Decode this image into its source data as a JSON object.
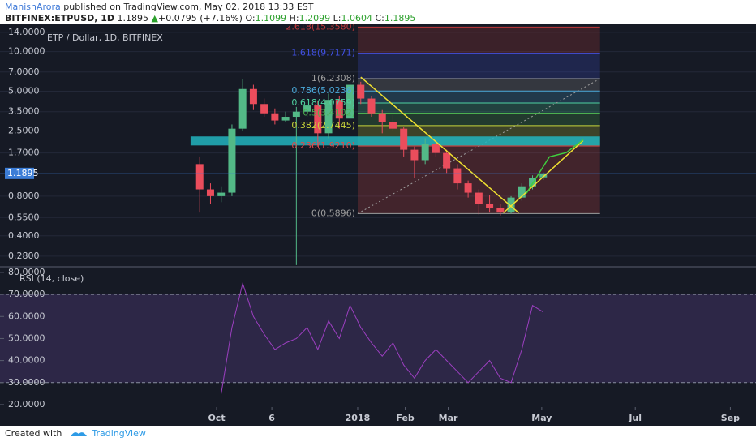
{
  "header": {
    "author": "ManishArora",
    "published": "published on TradingView.com, May 02, 2018 13:33 EST",
    "symbol": "BITFINEX:ETPUSD, 1D",
    "last": "1.1895",
    "arrow": "▲",
    "change": "+0.0795 (+7.16%)",
    "o_label": "O:",
    "o": "1.1099",
    "h_label": "H:",
    "h": "1.2099",
    "l_label": "L:",
    "l": "1.0604",
    "c_label": "C:",
    "c": "1.1895"
  },
  "footer": {
    "created": "Created with",
    "brand": "TradingView"
  },
  "chart_data": [
    {
      "type": "candlestick",
      "title": "ETP / Dollar, 1D, BITFINEX",
      "x": [
        0,
        7,
        14,
        21,
        28,
        35,
        42,
        49,
        56,
        63,
        70,
        77,
        84,
        91,
        98,
        105,
        112,
        119,
        126,
        133,
        140,
        147,
        154,
        161,
        168,
        175,
        182,
        189,
        196,
        203,
        210,
        217,
        224
      ],
      "open": [
        1.4,
        0.9,
        0.8,
        0.85,
        2.6,
        5.2,
        4.0,
        3.4,
        3.0,
        3.2,
        3.5,
        3.9,
        2.4,
        4.3,
        3.1,
        5.6,
        4.4,
        3.4,
        2.9,
        2.6,
        1.8,
        1.5,
        2.0,
        1.7,
        1.3,
        1.0,
        0.85,
        0.7,
        0.65,
        0.6,
        0.78,
        0.95,
        1.1099
      ],
      "high": [
        1.6,
        1.0,
        0.95,
        2.8,
        6.2,
        5.6,
        4.4,
        3.7,
        3.5,
        3.8,
        4.6,
        4.2,
        4.8,
        4.6,
        6.3,
        5.9,
        4.6,
        3.6,
        3.3,
        2.7,
        1.9,
        2.2,
        2.1,
        1.8,
        1.4,
        1.05,
        0.9,
        0.82,
        0.7,
        0.8,
        1.0,
        1.15,
        1.2099
      ],
      "low": [
        0.6,
        0.7,
        0.72,
        0.8,
        2.5,
        3.6,
        3.2,
        2.8,
        2.9,
        0.24,
        3.2,
        1.9,
        2.2,
        2.6,
        2.9,
        4.0,
        3.2,
        2.4,
        2.5,
        1.6,
        1.1,
        1.4,
        1.6,
        1.2,
        0.9,
        0.78,
        0.58,
        0.6,
        0.57,
        0.59,
        0.74,
        0.9,
        1.0604
      ],
      "close": [
        0.9,
        0.8,
        0.85,
        2.6,
        5.2,
        4.0,
        3.4,
        3.0,
        3.2,
        3.5,
        3.9,
        2.4,
        4.3,
        3.1,
        5.6,
        4.4,
        3.4,
        2.9,
        2.6,
        1.8,
        1.5,
        2.0,
        1.7,
        1.3,
        1.0,
        0.85,
        0.7,
        0.65,
        0.6,
        0.78,
        0.95,
        1.1,
        1.1895
      ],
      "up_color": "#53b987",
      "down_color": "#eb4d5c",
      "log_y": true,
      "ylim": [
        0.236,
        16.1
      ],
      "xlim": [
        -126,
        359
      ],
      "grid": true,
      "yticks": [
        {
          "value": 14,
          "label": "14.0000"
        },
        {
          "value": 10,
          "label": "10.0000"
        },
        {
          "value": 7,
          "label": "7.0000"
        },
        {
          "value": 5,
          "label": "5.0000"
        },
        {
          "value": 3.5,
          "label": "3.5000"
        },
        {
          "value": 2.5,
          "label": "2.5000"
        },
        {
          "value": 1.7,
          "label": "1.7000"
        },
        {
          "value": 0.8,
          "label": "0.8000"
        },
        {
          "value": 0.55,
          "label": "0.5500"
        },
        {
          "value": 0.4,
          "label": "0.4000"
        },
        {
          "value": 0.28,
          "label": "0.2800"
        }
      ],
      "last_price": 1.1895,
      "last_color": "#3c7dd6",
      "fib": {
        "xstart": 103,
        "xend": 261,
        "levels": [
          {
            "label": "2.618(15.3580)",
            "value": 15.358,
            "color": "#c0393b"
          },
          {
            "label": "1.618(9.7171)",
            "value": 9.7171,
            "color": "#4050e0"
          },
          {
            "label": "1(6.2308)",
            "value": 6.2308,
            "color": "#9e9e9e"
          },
          {
            "label": "0.786(5.0236)",
            "value": 5.0236,
            "color": "#4aa8d8"
          },
          {
            "label": "0.618(4.0759)",
            "value": 4.0759,
            "color": "#4fd1a0"
          },
          {
            "label": "0.5(3.4102)",
            "value": 3.4102,
            "color": "#4caf50"
          },
          {
            "label": "0.382(2.7445)",
            "value": 2.7445,
            "color": "#c8d43a"
          },
          {
            "label": "0.236(1.9210)",
            "value": 1.921,
            "color": "#e04a4a"
          },
          {
            "label": "0(0.5896)",
            "value": 0.5896,
            "color": "#9e9e9e"
          }
        ]
      },
      "band": {
        "x": [
          -6,
          261
        ],
        "y": [
          1.94,
          2.27
        ],
        "color": "#22b5c0"
      },
      "trendlines": [
        {
          "color": "#f0e030",
          "x": [
            105,
            208
          ],
          "y": [
            6.4,
            0.597
          ]
        },
        {
          "color": "#f0e030",
          "x": [
            198,
            250
          ],
          "y": [
            0.597,
            2.11
          ]
        }
      ],
      "path": {
        "color": "#3fd13f",
        "x": [
          213,
          228,
          239,
          250
        ],
        "y": [
          0.84,
          1.59,
          1.71,
          2.14
        ]
      }
    },
    {
      "type": "line",
      "title": "RSI (14, close)",
      "x": [
        0,
        7,
        14,
        21,
        28,
        35,
        42,
        49,
        56,
        63,
        70,
        77,
        84,
        91,
        98,
        105,
        112,
        119,
        126,
        133,
        140,
        147,
        154,
        161,
        168,
        175,
        182,
        189,
        196,
        203,
        210,
        217,
        224
      ],
      "values": [
        null,
        null,
        25,
        55,
        75,
        60,
        52,
        45,
        48,
        50,
        55,
        45,
        58,
        50,
        65,
        55,
        48,
        42,
        48,
        38,
        32,
        40,
        45,
        40,
        35,
        30,
        35,
        40,
        32,
        30,
        45,
        65,
        62
      ],
      "color": "#9c3fc0",
      "ylim": [
        13,
        81.8
      ],
      "xlim": [
        -126,
        359
      ],
      "yticks": [
        {
          "value": 80,
          "label": "80.0000"
        },
        {
          "value": 70,
          "label": "70.0000"
        },
        {
          "value": 60,
          "label": "60.0000"
        },
        {
          "value": 50,
          "label": "50.0000"
        },
        {
          "value": 40,
          "label": "40.0000"
        },
        {
          "value": 30,
          "label": "30.0000"
        },
        {
          "value": 20,
          "label": "20.0000"
        }
      ],
      "bands": [
        30,
        70
      ],
      "band_color": "#7e57c2",
      "xticks": [
        {
          "value": 11,
          "label": "Oct"
        },
        {
          "value": 47,
          "label": "6"
        },
        {
          "value": 103,
          "label": "2018"
        },
        {
          "value": 134,
          "label": "Feb"
        },
        {
          "value": 162,
          "label": "Mar"
        },
        {
          "value": 223,
          "label": "May"
        },
        {
          "value": 284,
          "label": "Jul"
        },
        {
          "value": 346,
          "label": "Sep"
        }
      ]
    }
  ]
}
